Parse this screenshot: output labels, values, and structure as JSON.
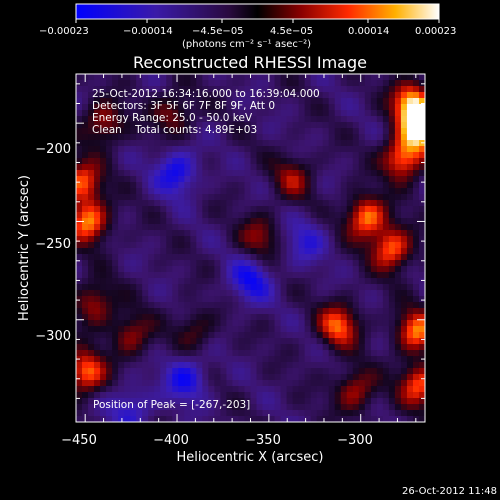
{
  "chart_data": {
    "type": "heatmap",
    "title": "Reconstructed RHESSI Image",
    "xlabel": "Heliocentric X (arcsec)",
    "ylabel": "Heliocentric Y (arcsec)",
    "xlim": [
      -455,
      -265
    ],
    "ylim": [
      -352,
      -175
    ],
    "xticks": [
      -450,
      -400,
      -350,
      -300
    ],
    "xtick_labels": [
      "−450",
      "−400",
      "−350",
      "−300"
    ],
    "yticks": [
      -200,
      -250,
      -300
    ],
    "ytick_labels": [
      "−200",
      "−250",
      "−300"
    ],
    "colorbar": {
      "ticks": [
        -0.00023,
        -0.00014,
        -4.5e-05,
        4.5e-05,
        0.00014,
        0.00023
      ],
      "tick_labels": [
        "−0.00023",
        "−0.00014",
        "−4.5e−05",
        "4.5e−05",
        "0.00014",
        "0.00023"
      ],
      "label": "(photons cm⁻² s⁻¹ asec⁻²)",
      "range": [
        -0.00023,
        0.00023
      ]
    },
    "annotations": [
      "25-Oct-2012 16:34:16.000 to 16:39:04.000",
      "Detectors: 3F 5F 6F 7F 8F 9F, Att 0",
      "Energy Range: 25.0 - 50.0 keV",
      "Clean    Total counts: 4.89E+03"
    ],
    "peak_label": "Position of Peak = [-267,-203]",
    "peak": [
      -267,
      -203
    ],
    "bright_regions": [
      {
        "x": -267,
        "y": -203,
        "level": 1.0
      },
      {
        "x": -272,
        "y": -190,
        "level": 0.95
      },
      {
        "x": -277,
        "y": -218,
        "level": 0.85
      },
      {
        "x": -297,
        "y": -248,
        "level": 0.85
      },
      {
        "x": -283,
        "y": -264,
        "level": 0.8
      },
      {
        "x": -270,
        "y": -306,
        "level": 0.8
      },
      {
        "x": -268,
        "y": -333,
        "level": 0.75
      },
      {
        "x": -312,
        "y": -303,
        "level": 0.75
      },
      {
        "x": -337,
        "y": -228,
        "level": 0.45
      },
      {
        "x": -355,
        "y": -258,
        "level": 0.45
      },
      {
        "x": -303,
        "y": -336,
        "level": 0.55
      },
      {
        "x": -448,
        "y": -250,
        "level": 0.85
      },
      {
        "x": -452,
        "y": -230,
        "level": 0.75
      },
      {
        "x": -450,
        "y": -327,
        "level": 0.8
      },
      {
        "x": -445,
        "y": -292,
        "level": 0.55
      },
      {
        "x": -425,
        "y": -308,
        "level": 0.5
      },
      {
        "x": -402,
        "y": -195,
        "level": 0.45
      },
      {
        "x": -440,
        "y": -200,
        "level": 0.55
      },
      {
        "x": -390,
        "y": -305,
        "level": 0.35
      }
    ],
    "dim_regions": [
      {
        "x": -400,
        "y": -225,
        "level": 0.55
      },
      {
        "x": -360,
        "y": -280,
        "level": 0.5
      },
      {
        "x": -395,
        "y": -330,
        "level": 0.5
      },
      {
        "x": -330,
        "y": -260,
        "level": 0.35
      },
      {
        "x": -425,
        "y": -345,
        "level": 0.4
      }
    ],
    "colors": {
      "background": "#000000",
      "text": "#ffffff"
    }
  },
  "footer": {
    "timestamp": "26-Oct-2012 11:48"
  }
}
